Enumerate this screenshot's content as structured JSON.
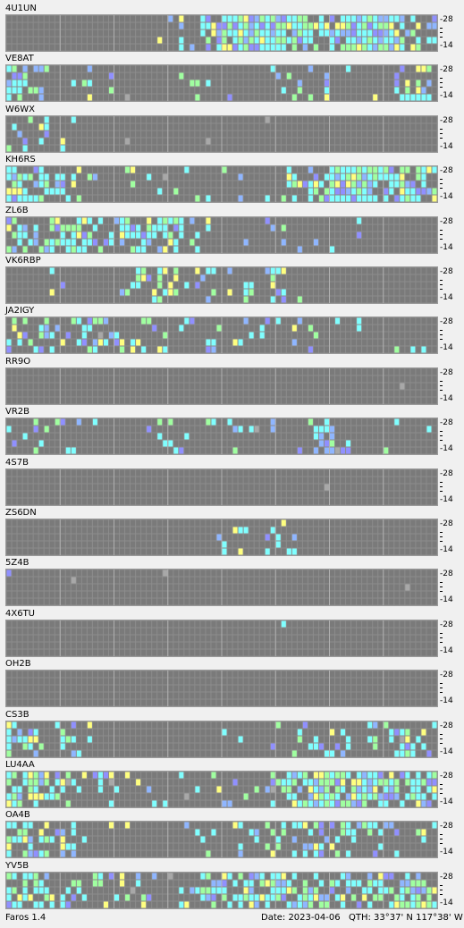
{
  "window": {
    "app_name": "Faros 1.4"
  },
  "status": {
    "date": "Date: 2023-04-06",
    "qth": "QTH: 33°37' N  117°38' W"
  },
  "axis": {
    "top_band": "28",
    "bottom_band": "14"
  },
  "colors": {
    "background": "#6a6a6a",
    "grid": "#8c8c8c",
    "cell": "#7a7a7a",
    "cyan": "#80ffff",
    "green": "#a0ffa0",
    "blue": "#8fb6ff",
    "violet": "#9090ff",
    "yellow": "#ffff80",
    "gray": "#a8a8a8"
  },
  "beacons": [
    {
      "callsign": "4U1UN",
      "activity": [
        0.02,
        0.0,
        0.0,
        0.0,
        0.0,
        0.0,
        0.0,
        0.05,
        0.12,
        0.8,
        0.95,
        0.98,
        0.98,
        0.9,
        0.7,
        0.85,
        0.95,
        0.9,
        0.75,
        0.6
      ]
    },
    {
      "callsign": "VE8AT",
      "activity": [
        0.55,
        0.35,
        0.1,
        0.2,
        0.05,
        0.0,
        0.0,
        0.0,
        0.1,
        0.05,
        0.1,
        0.0,
        0.15,
        0.2,
        0.3,
        0.05,
        0.0,
        0.1,
        0.4,
        0.45
      ]
    },
    {
      "callsign": "W6WX",
      "activity": [
        0.3,
        0.25,
        0.15,
        0.1,
        0.0,
        0.0,
        0.0,
        0.0,
        0.0,
        0.0,
        0.0,
        0.0,
        0.0,
        0.0,
        0.0,
        0.0,
        0.0,
        0.0,
        0.0,
        0.0
      ]
    },
    {
      "callsign": "KH6RS",
      "activity": [
        0.85,
        0.7,
        0.4,
        0.15,
        0.1,
        0.15,
        0.15,
        0.05,
        0.1,
        0.1,
        0.05,
        0.05,
        0.1,
        0.45,
        0.75,
        0.85,
        0.9,
        0.8,
        0.65,
        0.6
      ]
    },
    {
      "callsign": "ZL6B",
      "activity": [
        0.6,
        0.35,
        0.55,
        0.5,
        0.35,
        0.5,
        0.55,
        0.5,
        0.15,
        0.1,
        0.05,
        0.05,
        0.15,
        0.05,
        0.05,
        0.05,
        0.05,
        0.0,
        0.0,
        0.0
      ]
    },
    {
      "callsign": "VK6RBP",
      "activity": [
        0.0,
        0.1,
        0.15,
        0.0,
        0.0,
        0.15,
        0.4,
        0.45,
        0.3,
        0.2,
        0.2,
        0.25,
        0.3,
        0.05,
        0.05,
        0.0,
        0.0,
        0.0,
        0.0,
        0.0
      ]
    },
    {
      "callsign": "JA2IGY",
      "activity": [
        0.45,
        0.4,
        0.35,
        0.35,
        0.3,
        0.2,
        0.3,
        0.25,
        0.1,
        0.15,
        0.2,
        0.1,
        0.1,
        0.15,
        0.1,
        0.1,
        0.1,
        0.0,
        0.1,
        0.1
      ]
    },
    {
      "callsign": "RR9O",
      "activity": [
        0.02,
        0.03,
        0.0,
        0.0,
        0.0,
        0.03,
        0.03,
        0.0,
        0.0,
        0.0,
        0.0,
        0.05,
        0.0,
        0.0,
        0.0,
        0.0,
        0.0,
        0.0,
        0.0,
        0.0
      ]
    },
    {
      "callsign": "VR2B",
      "activity": [
        0.2,
        0.25,
        0.15,
        0.2,
        0.1,
        0.0,
        0.05,
        0.1,
        0.15,
        0.1,
        0.2,
        0.1,
        0.1,
        0.2,
        0.25,
        0.15,
        0.0,
        0.05,
        0.1,
        0.1
      ]
    },
    {
      "callsign": "4S7B",
      "activity": [
        0.0,
        0.0,
        0.0,
        0.0,
        0.0,
        0.0,
        0.0,
        0.0,
        0.0,
        0.0,
        0.0,
        0.0,
        0.0,
        0.0,
        0.0,
        0.0,
        0.0,
        0.0,
        0.0,
        0.0
      ]
    },
    {
      "callsign": "ZS6DN",
      "activity": [
        0.0,
        0.0,
        0.02,
        0.0,
        0.0,
        0.0,
        0.0,
        0.0,
        0.0,
        0.05,
        0.1,
        0.15,
        0.25,
        0.2,
        0.0,
        0.05,
        0.0,
        0.0,
        0.0,
        0.0
      ]
    },
    {
      "callsign": "5Z4B",
      "activity": [
        0.02,
        0.0,
        0.0,
        0.0,
        0.0,
        0.0,
        0.02,
        0.0,
        0.0,
        0.0,
        0.0,
        0.0,
        0.0,
        0.0,
        0.0,
        0.0,
        0.0,
        0.0,
        0.0,
        0.0
      ]
    },
    {
      "callsign": "4X6TU",
      "activity": [
        0.0,
        0.0,
        0.0,
        0.0,
        0.0,
        0.0,
        0.0,
        0.0,
        0.0,
        0.0,
        0.0,
        0.1,
        0.05,
        0.05,
        0.0,
        0.0,
        0.0,
        0.0,
        0.0,
        0.0
      ]
    },
    {
      "callsign": "OH2B",
      "activity": [
        0.0,
        0.0,
        0.03,
        0.0,
        0.0,
        0.0,
        0.03,
        0.0,
        0.0,
        0.0,
        0.0,
        0.0,
        0.0,
        0.0,
        0.0,
        0.0,
        0.0,
        0.0,
        0.0,
        0.0
      ]
    },
    {
      "callsign": "CS3B",
      "activity": [
        0.4,
        0.35,
        0.3,
        0.15,
        0.0,
        0.0,
        0.0,
        0.0,
        0.05,
        0.0,
        0.1,
        0.0,
        0.2,
        0.25,
        0.3,
        0.35,
        0.3,
        0.25,
        0.3,
        0.3
      ]
    },
    {
      "callsign": "LU4AA",
      "activity": [
        0.75,
        0.65,
        0.55,
        0.35,
        0.25,
        0.15,
        0.1,
        0.1,
        0.15,
        0.1,
        0.15,
        0.1,
        0.25,
        0.5,
        0.8,
        0.85,
        0.8,
        0.75,
        0.6,
        0.7
      ]
    },
    {
      "callsign": "OA4B",
      "activity": [
        0.55,
        0.5,
        0.3,
        0.2,
        0.15,
        0.05,
        0.0,
        0.0,
        0.1,
        0.2,
        0.25,
        0.2,
        0.35,
        0.45,
        0.5,
        0.45,
        0.35,
        0.3,
        0.25,
        0.3
      ]
    },
    {
      "callsign": "YV5B",
      "activity": [
        0.7,
        0.55,
        0.4,
        0.25,
        0.3,
        0.3,
        0.25,
        0.15,
        0.2,
        0.4,
        0.55,
        0.6,
        0.65,
        0.55,
        0.6,
        0.55,
        0.6,
        0.55,
        0.65,
        0.55
      ]
    }
  ]
}
